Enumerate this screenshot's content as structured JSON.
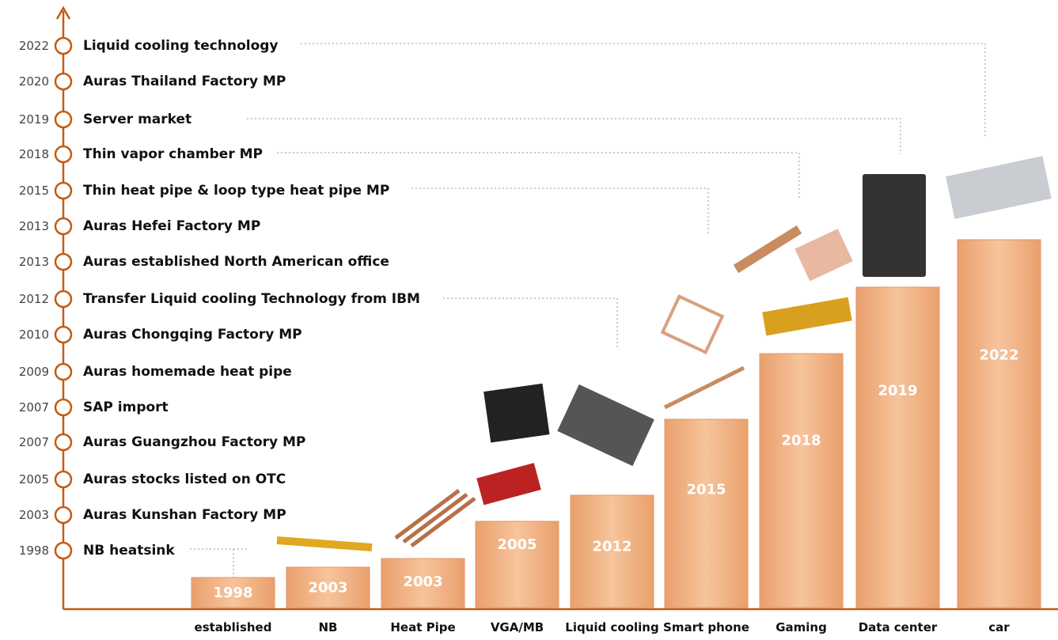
{
  "timeline": [
    {
      "year": "2022",
      "label": "Liquid cooling technology"
    },
    {
      "year": "2020",
      "label": "Auras Thailand Factory MP"
    },
    {
      "year": "2019",
      "label": "Server market"
    },
    {
      "year": "2018",
      "label": "Thin vapor chamber MP"
    },
    {
      "year": "2015",
      "label": "Thin heat pipe & loop type heat pipe MP"
    },
    {
      "year": "2013",
      "label": "Auras Hefei Factory  MP"
    },
    {
      "year": "2013",
      "label": "Auras established North American office"
    },
    {
      "year": "2012",
      "label": "Transfer Liquid cooling Technology from IBM"
    },
    {
      "year": "2010",
      "label": "Auras Chongqing Factory MP"
    },
    {
      "year": "2009",
      "label": "Auras homemade heat pipe"
    },
    {
      "year": "2007",
      "label": "SAP import"
    },
    {
      "year": "2007",
      "label": "Auras Guangzhou Factory MP"
    },
    {
      "year": "2005",
      "label": "Auras stocks listed on OTC"
    },
    {
      "year": "2003",
      "label": "Auras Kunshan Factory MP"
    },
    {
      "year": "1998",
      "label": "NB heatsink"
    }
  ],
  "bars": [
    {
      "category": "established",
      "year": "1998"
    },
    {
      "category": "NB",
      "year": "2003"
    },
    {
      "category": "Heat Pipe",
      "year": "2003"
    },
    {
      "category": "VGA/MB",
      "year": "2005"
    },
    {
      "category": "Liquid cooling",
      "year": "2012"
    },
    {
      "category": "Smart phone",
      "year": "2015"
    },
    {
      "category": "Gaming",
      "year": "2018"
    },
    {
      "category": "Data center",
      "year": "2019"
    },
    {
      "category": "car",
      "year": "2022"
    }
  ]
}
